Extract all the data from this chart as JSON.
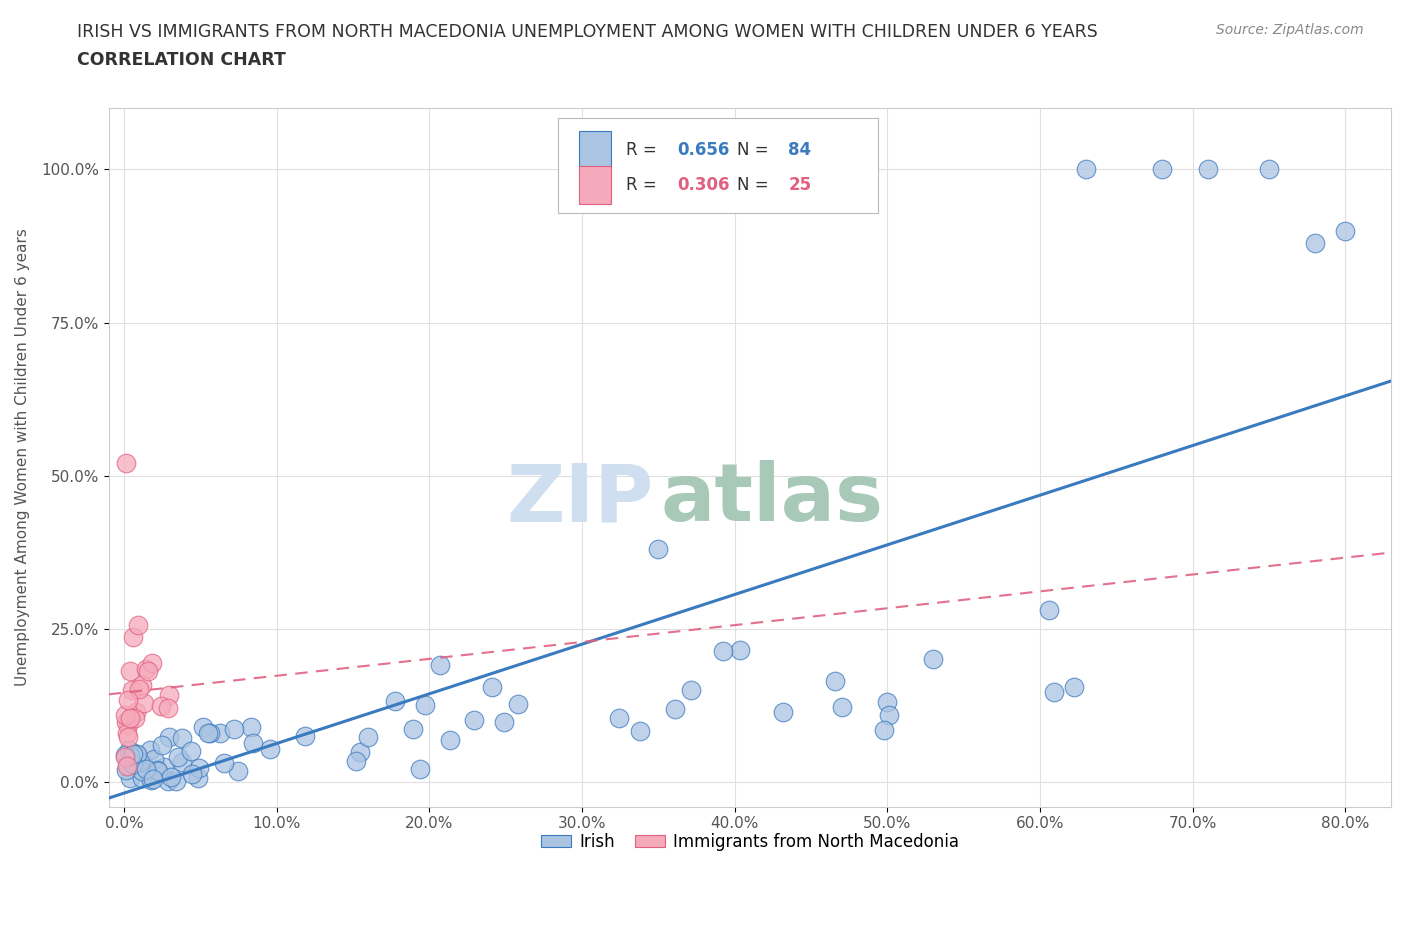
{
  "title_line1": "IRISH VS IMMIGRANTS FROM NORTH MACEDONIA UNEMPLOYMENT AMONG WOMEN WITH CHILDREN UNDER 6 YEARS",
  "title_line2": "CORRELATION CHART",
  "source": "Source: ZipAtlas.com",
  "xlabel_ticks": [
    "0.0%",
    "10.0%",
    "20.0%",
    "30.0%",
    "40.0%",
    "50.0%",
    "60.0%",
    "70.0%",
    "80.0%"
  ],
  "xlabel_vals": [
    0,
    10,
    20,
    30,
    40,
    50,
    60,
    70,
    80
  ],
  "ylabel_ticks": [
    "0.0%",
    "25.0%",
    "50.0%",
    "75.0%",
    "100.0%"
  ],
  "ylabel_vals": [
    0,
    25,
    50,
    75,
    100
  ],
  "ylabel_label": "Unemployment Among Women with Children Under 6 years",
  "xlim": [
    -1,
    83
  ],
  "ylim": [
    -4,
    110
  ],
  "r_irish": 0.656,
  "n_irish": 84,
  "r_mac": 0.306,
  "n_mac": 25,
  "irish_color": "#aac4e2",
  "mac_color": "#f5aabb",
  "irish_line_color": "#3a7abf",
  "mac_line_color": "#e06080",
  "watermark_zip": "ZIP",
  "watermark_atlas": "atlas",
  "watermark_color_zip": "#d0dff0",
  "watermark_color_atlas": "#a8c8b8",
  "title_color": "#333333",
  "legend_label_color": "#333333",
  "legend_val_color": "#3a7abf",
  "legend_val_color_mac": "#e06080",
  "irish_scatter_seed": 42,
  "mac_scatter_seed": 7
}
